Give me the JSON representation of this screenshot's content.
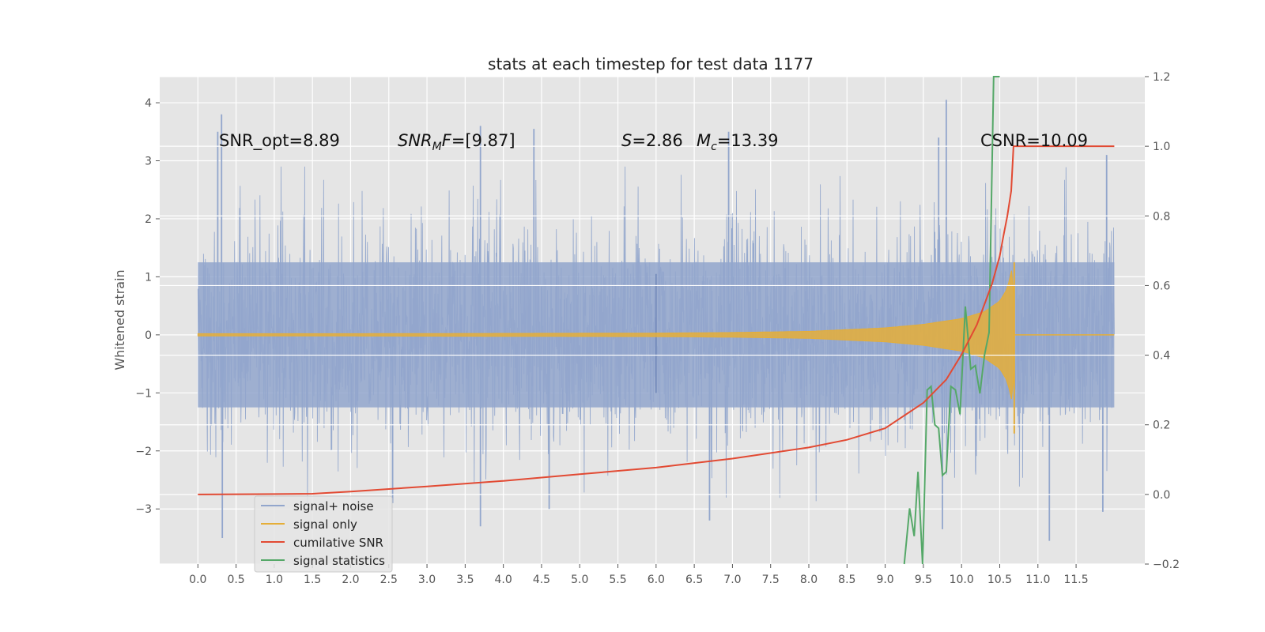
{
  "chart_data": {
    "type": "line",
    "title": "stats at each timestep for test data 1177",
    "ylabel": "Whitened strain",
    "xlim": [
      -0.5,
      12.4
    ],
    "ylim": [
      -3.95,
      4.45
    ],
    "y2lim": [
      -0.2,
      1.2
    ],
    "xticks": [
      "0.0",
      "0.5",
      "1.0",
      "1.5",
      "2.0",
      "2.5",
      "3.0",
      "3.5",
      "4.0",
      "4.5",
      "5.0",
      "5.5",
      "6.0",
      "6.5",
      "7.0",
      "7.5",
      "8.0",
      "8.5",
      "9.0",
      "9.5",
      "10.0",
      "10.5",
      "11.0",
      "11.5"
    ],
    "yticks": [
      4,
      3,
      2,
      1,
      0,
      -1,
      -2,
      -3
    ],
    "yticks_labels": [
      "4",
      "3",
      "2",
      "1",
      "0",
      "−1",
      "−2",
      "−3"
    ],
    "y2ticks": [
      1.2,
      1.0,
      0.8,
      0.6,
      0.4,
      0.2,
      0.0,
      -0.2
    ],
    "y2ticks_labels": [
      "1.2",
      "1.0",
      "0.8",
      "0.6",
      "0.4",
      "0.2",
      "0.0",
      "−0.2"
    ],
    "grid": true,
    "legend_position": "lower-left",
    "annotations": {
      "snr_opt": "SNR_opt=8.89",
      "snr_mf_sym": "SNR",
      "snr_mf_sub": "M",
      "snr_mf_f": "F",
      "snr_mf_val": "=[9.87]",
      "s_sym": "S",
      "s_val": "=2.86",
      "mc_sym": "M",
      "mc_sub": "c",
      "mc_val": "=13.39",
      "csnr": "CSNR=10.09"
    },
    "series": [
      {
        "name": "signal+ noise",
        "color": "#92a6cc",
        "x_range": [
          0,
          12
        ],
        "envelope_typical": [
          -2.0,
          2.0
        ],
        "peaks": [
          {
            "x": 0.31,
            "y": 3.8
          },
          {
            "x": 0.26,
            "y": 3.5
          },
          {
            "x": 0.32,
            "y": -3.5
          },
          {
            "x": 2.55,
            "y": -2.9
          },
          {
            "x": 3.7,
            "y": 3.6
          },
          {
            "x": 4.4,
            "y": 3.55
          },
          {
            "x": 3.7,
            "y": -3.3
          },
          {
            "x": 4.6,
            "y": -3.0
          },
          {
            "x": 6.95,
            "y": 3.5
          },
          {
            "x": 6.7,
            "y": -3.2
          },
          {
            "x": 9.8,
            "y": 4.05
          },
          {
            "x": 9.7,
            "y": 3.4
          },
          {
            "x": 9.75,
            "y": -3.35
          },
          {
            "x": 11.15,
            "y": -3.55
          },
          {
            "x": 11.85,
            "y": -3.05
          },
          {
            "x": 11.9,
            "y": 3.1
          }
        ]
      },
      {
        "name": "signal only",
        "color": "#e5ae38",
        "x": [
          0,
          2,
          4,
          6,
          7,
          8,
          8.5,
          9,
          9.5,
          10,
          10.3,
          10.5,
          10.6,
          10.68,
          10.7,
          12
        ],
        "amplitude": [
          0.02,
          0.02,
          0.025,
          0.03,
          0.04,
          0.06,
          0.09,
          0.12,
          0.18,
          0.28,
          0.4,
          0.58,
          0.8,
          1.25,
          0.0,
          0.0
        ]
      },
      {
        "name": "cumilative SNR",
        "color": "#e24a33",
        "axis": "right",
        "x": [
          0,
          1,
          1.5,
          2,
          3,
          4,
          5,
          6,
          7,
          8,
          8.5,
          9,
          9.5,
          9.8,
          10,
          10.2,
          10.4,
          10.5,
          10.55,
          10.6,
          10.65,
          10.68,
          12
        ],
        "values": [
          0.0,
          0.001,
          0.002,
          0.008,
          0.023,
          0.039,
          0.058,
          0.077,
          0.103,
          0.135,
          0.157,
          0.19,
          0.263,
          0.33,
          0.402,
          0.487,
          0.605,
          0.685,
          0.744,
          0.8,
          0.872,
          1.0,
          1.0
        ]
      },
      {
        "name": "signal statistics",
        "color": "#55a868",
        "axis": "right",
        "x": [
          9.25,
          9.32,
          9.38,
          9.43,
          9.49,
          9.55,
          9.6,
          9.65,
          9.7,
          9.75,
          9.8,
          9.86,
          9.92,
          9.98,
          10.05,
          10.12,
          10.18,
          10.24,
          10.3,
          10.36,
          10.42,
          10.47,
          10.5
        ],
        "values": [
          -0.2,
          -0.04,
          -0.12,
          0.065,
          -0.2,
          0.3,
          0.31,
          0.2,
          0.19,
          0.055,
          0.065,
          0.31,
          0.3,
          0.23,
          0.54,
          0.36,
          0.37,
          0.29,
          0.4,
          0.465,
          1.2,
          1.2,
          1.2
        ]
      }
    ]
  }
}
